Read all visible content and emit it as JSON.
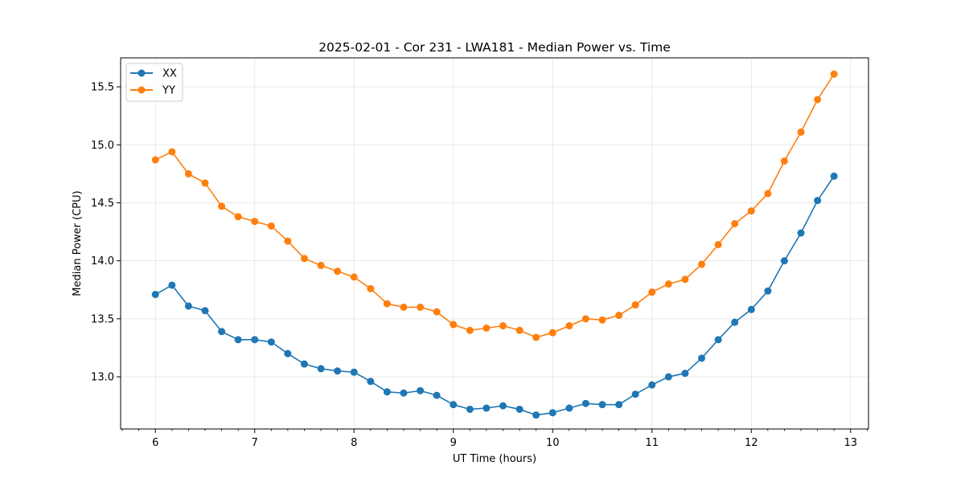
{
  "chart_data": {
    "type": "line",
    "title": "2025-02-01 - Cor 231 - LWA181 - Median Power vs. Time",
    "xlabel": "UT Time (hours)",
    "ylabel": "Median Power (CPU)",
    "xlim": [
      5.65,
      13.18
    ],
    "ylim": [
      12.55,
      15.75
    ],
    "xticks": [
      6,
      7,
      8,
      9,
      10,
      11,
      12,
      13
    ],
    "xtick_labels": [
      "6",
      "7",
      "8",
      "9",
      "10",
      "11",
      "12",
      "13"
    ],
    "yticks": [
      13.0,
      13.5,
      14.0,
      14.5,
      15.0,
      15.5
    ],
    "ytick_labels": [
      "13.0",
      "13.5",
      "14.0",
      "14.5",
      "15.0",
      "15.5"
    ],
    "grid": true,
    "legend_position": "top-left",
    "x": [
      6.0,
      6.167,
      6.333,
      6.5,
      6.667,
      6.833,
      7.0,
      7.167,
      7.333,
      7.5,
      7.667,
      7.833,
      8.0,
      8.167,
      8.333,
      8.5,
      8.667,
      8.833,
      9.0,
      9.167,
      9.333,
      9.5,
      9.667,
      9.833,
      10.0,
      10.167,
      10.333,
      10.5,
      10.667,
      10.833,
      11.0,
      11.167,
      11.333,
      11.5,
      11.667,
      11.833,
      12.0,
      12.167,
      12.333,
      12.5,
      12.667,
      12.833
    ],
    "series": [
      {
        "name": "XX",
        "color": "#1f77b4",
        "values": [
          13.71,
          13.79,
          13.61,
          13.57,
          13.39,
          13.32,
          13.32,
          13.3,
          13.2,
          13.11,
          13.07,
          13.05,
          13.04,
          12.96,
          12.87,
          12.86,
          12.88,
          12.84,
          12.76,
          12.72,
          12.73,
          12.75,
          12.72,
          12.67,
          12.69,
          12.73,
          12.77,
          12.76,
          12.76,
          12.85,
          12.93,
          13.0,
          13.03,
          13.16,
          13.32,
          13.47,
          13.58,
          13.74,
          14.0,
          14.24,
          14.52,
          14.73
        ]
      },
      {
        "name": "YY",
        "color": "#ff7f0e",
        "values": [
          14.87,
          14.94,
          14.75,
          14.67,
          14.47,
          14.38,
          14.34,
          14.3,
          14.17,
          14.02,
          13.96,
          13.91,
          13.86,
          13.76,
          13.63,
          13.6,
          13.6,
          13.56,
          13.45,
          13.4,
          13.42,
          13.44,
          13.4,
          13.34,
          13.38,
          13.44,
          13.5,
          13.49,
          13.53,
          13.62,
          13.73,
          13.8,
          13.84,
          13.97,
          14.14,
          14.32,
          14.43,
          14.58,
          14.86,
          15.11,
          15.39,
          15.61
        ]
      }
    ]
  }
}
